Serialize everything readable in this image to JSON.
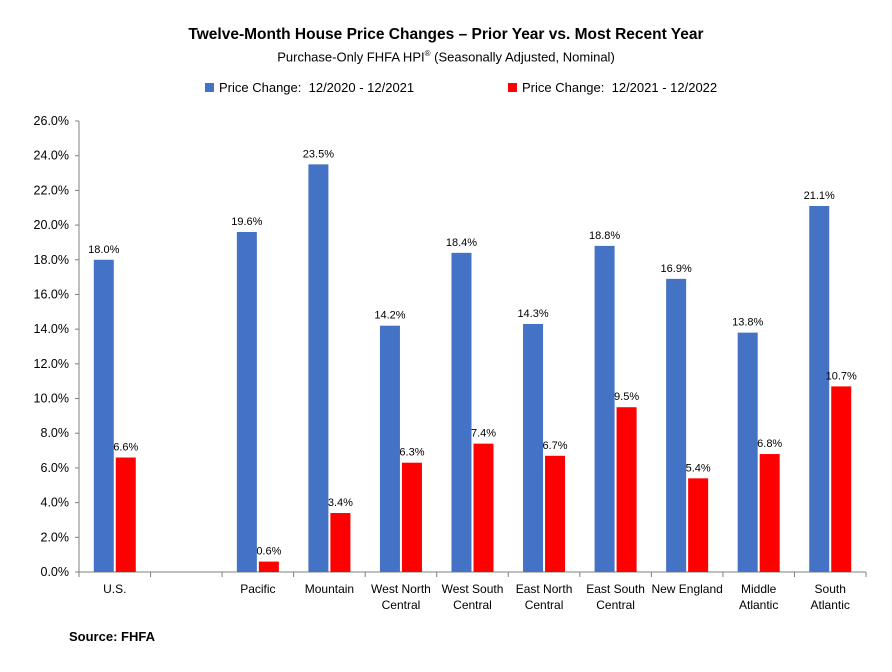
{
  "chart_data": {
    "type": "bar",
    "title": "Twelve-Month House Price Changes – Prior Year vs. Most Recent Year",
    "subtitle": "Purchase-Only FHFA HPI",
    "subtitle_sup": "®",
    "subtitle_tail": " (Seasonally Adjusted, Nominal)",
    "categories": [
      [
        "U.S."
      ],
      [
        ""
      ],
      [
        "Pacific"
      ],
      [
        "Mountain"
      ],
      [
        "West North",
        "Central"
      ],
      [
        "West South",
        "Central"
      ],
      [
        "East North",
        "Central"
      ],
      [
        "East South",
        "Central"
      ],
      [
        "New England"
      ],
      [
        "Middle",
        "Atlantic"
      ],
      [
        "South",
        "Atlantic"
      ]
    ],
    "series": [
      {
        "name": "Price Change:  12/2020 - 12/2021",
        "color": "#4472C4",
        "values": [
          18.0,
          null,
          19.6,
          23.5,
          14.2,
          18.4,
          14.3,
          18.8,
          16.9,
          13.8,
          21.1
        ]
      },
      {
        "name": "Price Change:  12/2021 - 12/2022",
        "color": "#FF0000",
        "values": [
          6.6,
          null,
          0.6,
          3.4,
          6.3,
          7.4,
          6.7,
          9.5,
          5.4,
          6.8,
          10.7
        ]
      }
    ],
    "ylim": [
      0,
      26
    ],
    "ytick_step": 2,
    "ytick_format": "%",
    "legend_position": "top",
    "grid": false,
    "source": "Source: FHFA"
  }
}
